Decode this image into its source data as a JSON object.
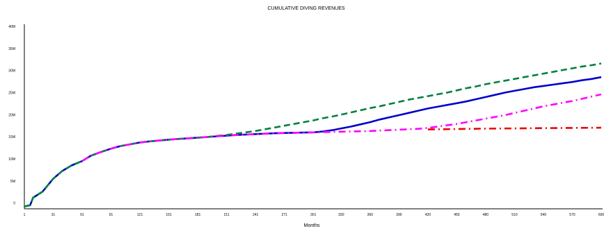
{
  "chart_data": {
    "type": "line",
    "title": "CUMULATIVE DIVING REVENUES",
    "xlabel": "Months",
    "ylabel": "",
    "xlim": [
      1,
      600
    ],
    "ylim": [
      -1,
      40
    ],
    "y_ticks": [
      {
        "value": 0,
        "label": "0"
      },
      {
        "value": 5,
        "label": "5M"
      },
      {
        "value": 10,
        "label": "10M"
      },
      {
        "value": 15,
        "label": "15M"
      },
      {
        "value": 20,
        "label": "20M"
      },
      {
        "value": 25,
        "label": "25M"
      },
      {
        "value": 30,
        "label": "30M"
      },
      {
        "value": 35,
        "label": "35M"
      },
      {
        "value": 40,
        "label": "40M"
      }
    ],
    "x_ticks": [
      {
        "value": 1,
        "label": "1"
      },
      {
        "value": 31,
        "label": "31"
      },
      {
        "value": 61,
        "label": "61"
      },
      {
        "value": 91,
        "label": "91"
      },
      {
        "value": 121,
        "label": "121"
      },
      {
        "value": 151,
        "label": "151"
      },
      {
        "value": 181,
        "label": "181"
      },
      {
        "value": 211,
        "label": "211"
      },
      {
        "value": 241,
        "label": "241"
      },
      {
        "value": 271,
        "label": "271"
      },
      {
        "value": 301,
        "label": "301"
      },
      {
        "value": 330,
        "label": "330"
      },
      {
        "value": 360,
        "label": "360"
      },
      {
        "value": 390,
        "label": "390"
      },
      {
        "value": 420,
        "label": "420"
      },
      {
        "value": 450,
        "label": "450"
      },
      {
        "value": 480,
        "label": "480"
      },
      {
        "value": 510,
        "label": "510"
      },
      {
        "value": 540,
        "label": "540"
      },
      {
        "value": 570,
        "label": "570"
      },
      {
        "value": 600,
        "label": "600"
      }
    ],
    "grid": false,
    "legend": "none",
    "series": [
      {
        "color": "#0000cc",
        "style": "solid",
        "x": [
          1,
          7,
          10,
          20,
          31,
          40,
          50,
          61,
          70,
          80,
          91,
          101,
          111,
          121,
          131,
          141,
          151,
          161,
          171,
          181,
          191,
          201,
          211,
          221,
          231,
          241,
          251,
          261,
          271,
          281,
          291,
          301,
          311,
          321,
          330,
          340,
          350,
          360,
          370,
          380,
          390,
          400,
          410,
          420,
          430,
          440,
          450,
          460,
          470,
          480,
          490,
          500,
          510,
          520,
          530,
          540,
          550,
          560,
          570,
          580,
          590,
          600
        ],
        "values": [
          -0.8,
          -0.5,
          1.2,
          2.6,
          5.5,
          7.2,
          8.5,
          9.5,
          10.7,
          11.5,
          12.3,
          12.9,
          13.3,
          13.7,
          13.95,
          14.15,
          14.35,
          14.5,
          14.65,
          14.8,
          14.95,
          15.1,
          15.25,
          15.4,
          15.5,
          15.6,
          15.7,
          15.8,
          15.85,
          15.9,
          15.95,
          16.0,
          16.2,
          16.5,
          16.9,
          17.3,
          17.8,
          18.3,
          18.9,
          19.4,
          19.9,
          20.4,
          20.9,
          21.4,
          21.8,
          22.2,
          22.6,
          23.0,
          23.5,
          24.0,
          24.5,
          25.0,
          25.4,
          25.8,
          26.2,
          26.5,
          26.8,
          27.1,
          27.4,
          27.8,
          28.1,
          28.5
        ]
      },
      {
        "color": "#008040",
        "style": "dashed",
        "x": [
          1,
          7,
          10,
          20,
          31,
          40,
          50,
          61,
          70,
          80,
          91,
          101,
          111,
          121,
          131,
          141,
          151,
          161,
          171,
          181,
          191,
          201,
          211,
          221,
          231,
          241,
          251,
          261,
          271,
          281,
          291,
          301,
          311,
          321,
          330,
          340,
          350,
          360,
          370,
          380,
          390,
          400,
          410,
          420,
          430,
          440,
          450,
          460,
          470,
          480,
          490,
          500,
          510,
          520,
          530,
          540,
          550,
          560,
          570,
          580,
          590,
          600
        ],
        "values": [
          -0.8,
          -0.5,
          1.2,
          2.6,
          5.5,
          7.2,
          8.5,
          9.5,
          10.7,
          11.5,
          12.3,
          12.9,
          13.3,
          13.7,
          13.95,
          14.15,
          14.35,
          14.5,
          14.65,
          14.8,
          14.95,
          15.2,
          15.4,
          15.7,
          16.0,
          16.3,
          16.7,
          17.1,
          17.5,
          17.9,
          18.3,
          18.7,
          19.2,
          19.6,
          20.0,
          20.5,
          21.0,
          21.5,
          21.9,
          22.4,
          22.9,
          23.4,
          23.8,
          24.2,
          24.6,
          25.0,
          25.5,
          26.0,
          26.4,
          26.9,
          27.3,
          27.7,
          28.1,
          28.5,
          28.9,
          29.3,
          29.7,
          30.1,
          30.5,
          30.9,
          31.2,
          31.6
        ]
      },
      {
        "color": "#ff00ff",
        "style": "dashdot",
        "x": [
          61,
          70,
          80,
          91,
          101,
          111,
          121,
          131,
          141,
          151,
          161,
          171,
          181,
          191,
          201,
          211,
          221,
          231,
          241,
          251,
          261,
          271,
          281,
          291,
          301,
          311,
          321,
          330,
          340,
          350,
          360,
          370,
          380,
          390,
          400,
          410,
          420,
          430,
          440,
          450,
          460,
          470,
          480,
          490,
          500,
          510,
          520,
          530,
          540,
          550,
          560,
          570,
          580,
          590,
          600
        ],
        "values": [
          9.5,
          10.7,
          11.5,
          12.3,
          12.9,
          13.3,
          13.7,
          13.95,
          14.15,
          14.35,
          14.5,
          14.65,
          14.8,
          14.95,
          15.1,
          15.25,
          15.4,
          15.5,
          15.6,
          15.7,
          15.8,
          15.85,
          15.9,
          15.95,
          16.0,
          16.05,
          16.1,
          16.15,
          16.2,
          16.25,
          16.3,
          16.4,
          16.5,
          16.6,
          16.7,
          16.8,
          17.0,
          17.3,
          17.6,
          17.9,
          18.3,
          18.7,
          19.1,
          19.5,
          19.9,
          20.4,
          20.9,
          21.4,
          21.9,
          22.3,
          22.7,
          23.1,
          23.6,
          24.1,
          24.6
        ]
      },
      {
        "color": "#ee0000",
        "style": "dashdot",
        "x": [
          420,
          450,
          480,
          510,
          540,
          570,
          600
        ],
        "values": [
          16.65,
          16.75,
          16.85,
          16.9,
          16.95,
          17.0,
          17.05
        ]
      }
    ]
  }
}
